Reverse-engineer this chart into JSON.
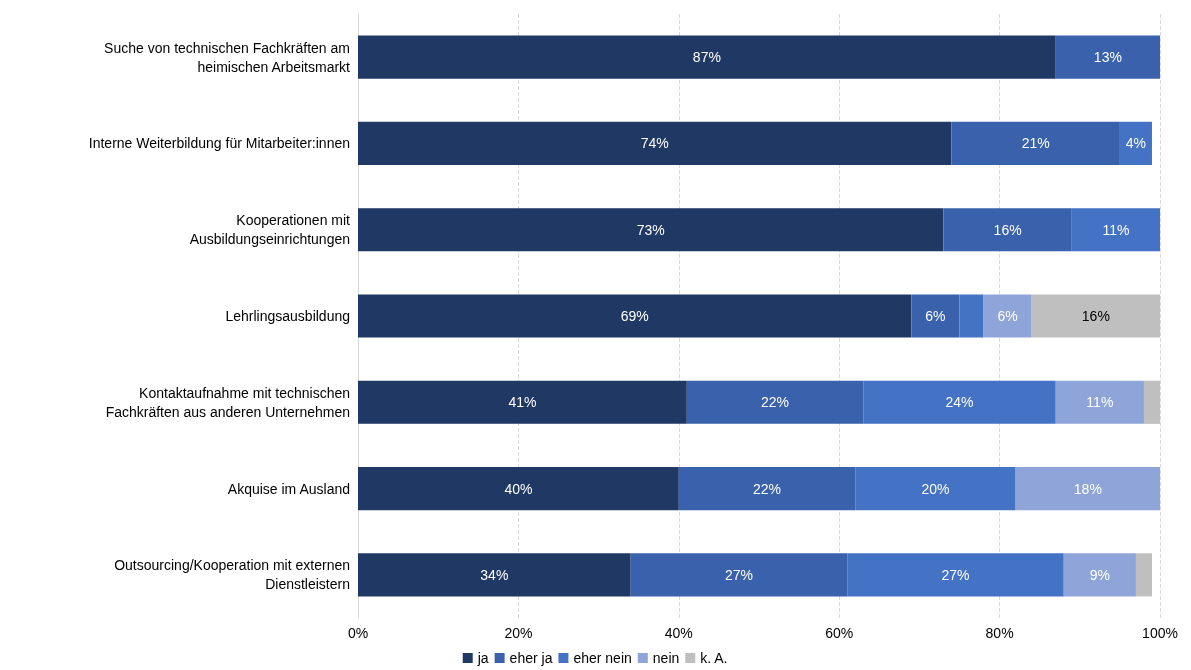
{
  "chart_data": {
    "type": "bar",
    "orientation": "horizontal",
    "stacked": true,
    "categories": [
      "Suche von technischen Fachkräften am\nheimischen Arbeitsmarkt",
      "Interne Weiterbildung für Mitarbeiter:innen",
      "Kooperationen mit\nAusbildungseinrichtungen",
      "Lehrlingsausbildung",
      "Kontaktaufnahme mit technischen\nFachkräften aus anderen Unternehmen",
      "Akquise im Ausland",
      "Outsourcing/Kooperation mit externen\nDienstleistern"
    ],
    "series": [
      {
        "name": "ja",
        "color": "#203864",
        "values": [
          87,
          74,
          73,
          69,
          41,
          40,
          34
        ],
        "value_labels": [
          "87%",
          "74%",
          "73%",
          "69%",
          "41%",
          "40%",
          "34%"
        ]
      },
      {
        "name": "eher ja",
        "color": "#3a62ac",
        "values": [
          13,
          21,
          16,
          6,
          22,
          22,
          27
        ],
        "value_labels": [
          "13%",
          "21%",
          "16%",
          "6%",
          "22%",
          "22%",
          "27%"
        ]
      },
      {
        "name": "eher nein",
        "color": "#4472c4",
        "values": [
          0,
          4,
          11,
          3,
          24,
          20,
          27
        ],
        "value_labels": [
          null,
          "4%",
          "11%",
          null,
          "24%",
          "20%",
          "27%"
        ]
      },
      {
        "name": "nein",
        "color": "#8fa5d9",
        "values": [
          0,
          0,
          0,
          6,
          11,
          18,
          9
        ],
        "value_labels": [
          null,
          null,
          null,
          "6%",
          "11%",
          "18%",
          "9%"
        ]
      },
      {
        "name": "k. A.",
        "color": "#bfbfbf",
        "values": [
          0,
          0,
          0,
          16,
          2,
          0,
          2
        ],
        "value_labels": [
          null,
          null,
          null,
          "16%",
          null,
          null,
          null
        ]
      }
    ],
    "xlim": [
      0,
      100
    ],
    "xticks": [
      {
        "value": 0,
        "label": "0%"
      },
      {
        "value": 20,
        "label": "20%"
      },
      {
        "value": 40,
        "label": "40%"
      },
      {
        "value": 60,
        "label": "60%"
      },
      {
        "value": 80,
        "label": "80%"
      },
      {
        "value": 100,
        "label": "100%"
      }
    ],
    "grid": "x",
    "legend": "bottom"
  }
}
